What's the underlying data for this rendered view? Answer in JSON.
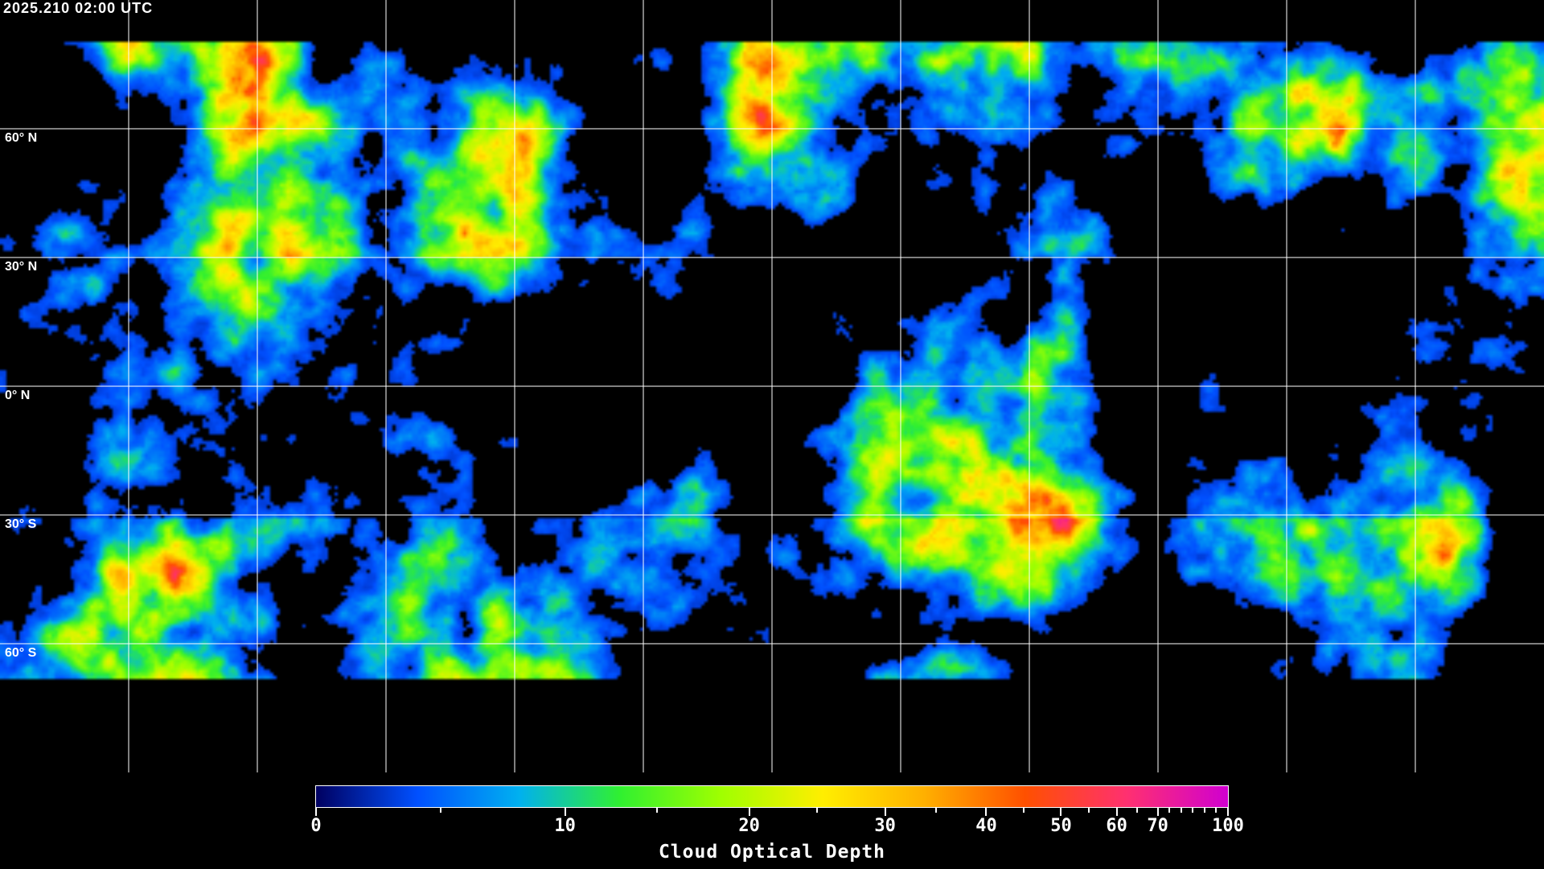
{
  "title": "2025.210 02:00 UTC",
  "map": {
    "projection": "equirectangular",
    "variable": "Cloud Optical Depth",
    "grid_longitude_step_deg": 30,
    "lat_labels": [
      {
        "lat": 60,
        "text": "60° N"
      },
      {
        "lat": 30,
        "text": "30° N"
      },
      {
        "lat": 0,
        "text": "0° N"
      },
      {
        "lat": -30,
        "text": "30° S"
      },
      {
        "lat": -60,
        "text": "60° S"
      }
    ]
  },
  "colorbar": {
    "label": "Cloud Optical Depth",
    "range": [
      0,
      100
    ],
    "colors": [
      "#000060",
      "#0050ff",
      "#00b0f0",
      "#30f030",
      "#a0ff00",
      "#ffee00",
      "#ffb000",
      "#ff5000",
      "#ff3070",
      "#d000d0"
    ],
    "major_ticks": [
      {
        "value": 0,
        "text": "0"
      },
      {
        "value": 10,
        "text": "10"
      },
      {
        "value": 20,
        "text": "20"
      },
      {
        "value": 30,
        "text": "30"
      },
      {
        "value": 40,
        "text": "40"
      },
      {
        "value": 50,
        "text": "50"
      },
      {
        "value": 60,
        "text": "60"
      },
      {
        "value": 70,
        "text": "70"
      },
      {
        "value": 100,
        "text": "100"
      }
    ],
    "minor_ticks": [
      5,
      15,
      25,
      35,
      45,
      55,
      65,
      75,
      80,
      85,
      90,
      95
    ]
  }
}
